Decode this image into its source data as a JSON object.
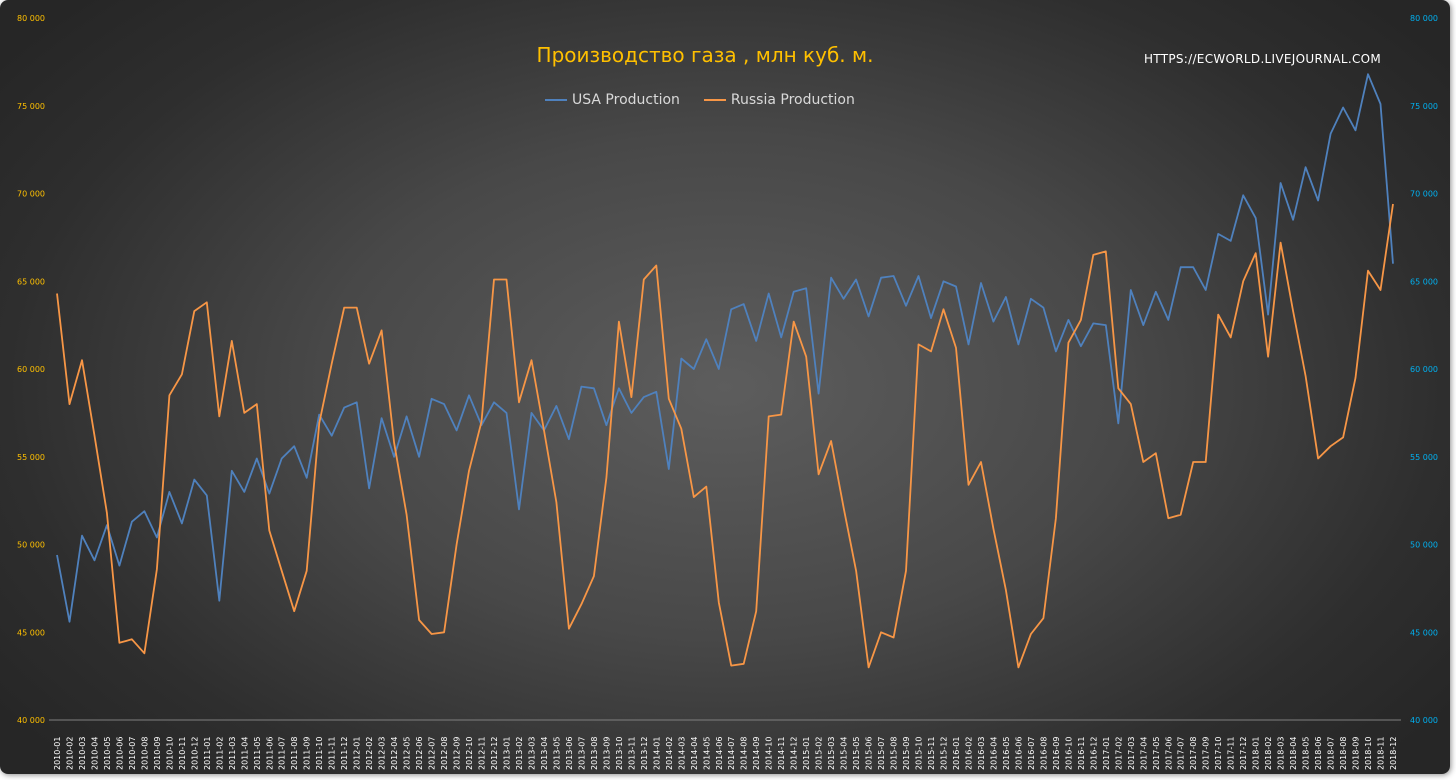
{
  "watermark": "HTTPS://ECWORLD.LIVEJOURNAL.COM",
  "colors": {
    "usa": "#4f81bd",
    "russia": "#f79646",
    "left_axis": "#ffc000",
    "right_axis": "#00b0f0",
    "x_axis": "#ffffff",
    "title": "#ffc000"
  },
  "chart_data": {
    "type": "line",
    "title": "Производство газа , млн куб. м.",
    "xlabel": "",
    "ylabel": "",
    "ylim": [
      40000,
      80000
    ],
    "y_ticks": [
      "40 000",
      "45 000",
      "50 000",
      "55 000",
      "60 000",
      "65 000",
      "70 000",
      "75 000",
      "80 000"
    ],
    "y_ticks_right": [
      "40 000",
      "45 000",
      "50 000",
      "55 000",
      "60 000",
      "65 000",
      "70 000",
      "75 000",
      "80 000"
    ],
    "grid": false,
    "legend_position": "top-center",
    "categories": [
      "2010-01",
      "2010-02",
      "2010-03",
      "2010-04",
      "2010-05",
      "2010-06",
      "2010-07",
      "2010-08",
      "2010-09",
      "2010-10",
      "2010-11",
      "2010-12",
      "2011-01",
      "2011-02",
      "2011-03",
      "2011-04",
      "2011-05",
      "2011-06",
      "2011-07",
      "2011-08",
      "2011-09",
      "2011-10",
      "2011-11",
      "2011-12",
      "2012-01",
      "2012-02",
      "2012-03",
      "2012-04",
      "2012-05",
      "2012-06",
      "2012-07",
      "2012-08",
      "2012-09",
      "2012-10",
      "2012-11",
      "2012-12",
      "2013-01",
      "2013-02",
      "2013-03",
      "2013-04",
      "2013-05",
      "2013-06",
      "2013-07",
      "2013-08",
      "2013-09",
      "2013-10",
      "2013-11",
      "2013-12",
      "2014-01",
      "2014-02",
      "2014-03",
      "2014-04",
      "2014-05",
      "2014-06",
      "2014-07",
      "2014-08",
      "2014-09",
      "2014-10",
      "2014-11",
      "2014-12",
      "2015-01",
      "2015-02",
      "2015-03",
      "2015-04",
      "2015-05",
      "2015-06",
      "2015-07",
      "2015-08",
      "2015-09",
      "2015-10",
      "2015-11",
      "2015-12",
      "2016-01",
      "2016-02",
      "2016-03",
      "2016-04",
      "2016-05",
      "2016-06",
      "2016-07",
      "2016-08",
      "2016-09",
      "2016-10",
      "2016-11",
      "2016-12",
      "2017-01",
      "2017-02",
      "2017-03",
      "2017-04",
      "2017-05",
      "2017-06",
      "2017-07",
      "2017-08",
      "2017-09",
      "2017-10",
      "2017-11",
      "2017-12",
      "2018-01",
      "2018-02",
      "2018-03",
      "2018-04",
      "2018-05",
      "2018-06",
      "2018-07",
      "2018-08",
      "2018-09",
      "2018-10",
      "2018-11",
      "2018-12"
    ],
    "series": [
      {
        "name": "USA Production",
        "color": "#4f81bd",
        "values": [
          49400,
          45600,
          50500,
          49100,
          51100,
          48800,
          51300,
          51900,
          50400,
          53000,
          51200,
          53700,
          52800,
          46800,
          54200,
          53000,
          54900,
          52900,
          54900,
          55600,
          53800,
          57400,
          56200,
          57800,
          58100,
          53200,
          57200,
          55000,
          57300,
          55000,
          58300,
          58000,
          56500,
          58500,
          56800,
          58100,
          57500,
          52000,
          57500,
          56500,
          57900,
          56000,
          59000,
          58900,
          56800,
          58900,
          57500,
          58400,
          58700,
          54300,
          60600,
          60000,
          61700,
          60000,
          63400,
          63700,
          61600,
          64300,
          61800,
          64400,
          64600,
          58600,
          65200,
          64000,
          65100,
          63000,
          65200,
          65300,
          63600,
          65300,
          62900,
          65000,
          64700,
          61400,
          64900,
          62700,
          64100,
          61400,
          64000,
          63500,
          61000,
          62800,
          61300,
          62600,
          62500,
          56900,
          64500,
          62500,
          64400,
          62800,
          65800,
          65800,
          64500,
          67700,
          67300,
          69900,
          68600,
          63100,
          70600,
          68500,
          71500,
          69600,
          73400,
          74900,
          73600,
          76800,
          75100,
          66000
        ]
      },
      {
        "name": "Russia Production",
        "color": "#f79646",
        "values": [
          64300,
          58000,
          60500,
          56200,
          51800,
          44400,
          44600,
          43800,
          48600,
          58500,
          59700,
          63300,
          63800,
          57300,
          61600,
          57500,
          58000,
          50800,
          48500,
          46200,
          48500,
          56900,
          60300,
          63500,
          63500,
          60300,
          62200,
          55800,
          51700,
          45700,
          44900,
          45000,
          50000,
          54200,
          57000,
          65100,
          65100,
          58100,
          60500,
          56500,
          52400,
          45200,
          46600,
          48200,
          53800,
          62700,
          58400,
          65100,
          65900,
          58300,
          56600,
          52700,
          53300,
          46700,
          43100,
          43200,
          46200,
          57300,
          57400,
          62700,
          60700,
          54000,
          55900,
          52100,
          48500,
          43000,
          45000,
          44700,
          48500,
          61400,
          61000,
          63400,
          61200,
          53400,
          54700,
          50900,
          47400,
          43000,
          44900,
          45800,
          51500,
          61500,
          62800,
          66500,
          66700,
          58900,
          58000,
          54700,
          55200,
          51500,
          51700,
          54700,
          54700,
          63100,
          61800,
          65000,
          66600,
          60700,
          67200,
          63300,
          59600,
          54900,
          55600,
          56100,
          59500,
          65600,
          64500,
          69400
        ]
      }
    ]
  }
}
